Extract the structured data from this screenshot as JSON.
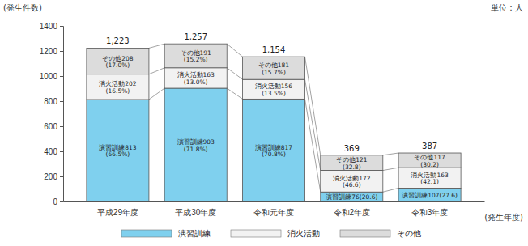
{
  "chart_data": {
    "type": "bar",
    "stacked": true,
    "data_labels": true,
    "y_label": "(発生件数)",
    "x_label": "(発生年度)",
    "unit": "単位：人",
    "categories": [
      "平成29年度",
      "平成30年度",
      "令和元年度",
      "令和2年度",
      "令和3年度"
    ],
    "series": [
      {
        "name": "演習訓練",
        "color": "#7fd0ee",
        "values": [
          813,
          903,
          817,
          76,
          107
        ],
        "shares": [
          66.5,
          71.8,
          70.8,
          20.6,
          27.6
        ],
        "share_labels": [
          "(66.5%)",
          "(71.8%)",
          "(70.8%)",
          "(20.6)",
          "(27.6)"
        ]
      },
      {
        "name": "消火活動",
        "color": "#f2f2f2",
        "values": [
          202,
          163,
          156,
          172,
          163
        ],
        "shares": [
          16.5,
          13.0,
          13.5,
          46.6,
          42.1
        ],
        "share_labels": [
          "(16.5%)",
          "(13.0%)",
          "(13.5%)",
          "(46.6)",
          "(42.1)"
        ]
      },
      {
        "name": "その他",
        "color": "#dcdcdc",
        "values": [
          208,
          191,
          181,
          121,
          117
        ],
        "shares": [
          17.0,
          15.2,
          15.7,
          32.8,
          30.2
        ],
        "share_labels": [
          "(17.0%)",
          "(15.2%)",
          "(15.7%)",
          "(32.8)",
          "(30.2)"
        ]
      }
    ],
    "totals": [
      1223,
      1257,
      1154,
      369,
      387
    ],
    "total_labels": [
      "1,223",
      "1,257",
      "1,154",
      "369",
      "387"
    ],
    "ylim": [
      0,
      1400
    ],
    "yticks": [
      0,
      200,
      400,
      600,
      800,
      1000,
      1200,
      1400
    ],
    "grid": false,
    "legend": "bottom"
  }
}
